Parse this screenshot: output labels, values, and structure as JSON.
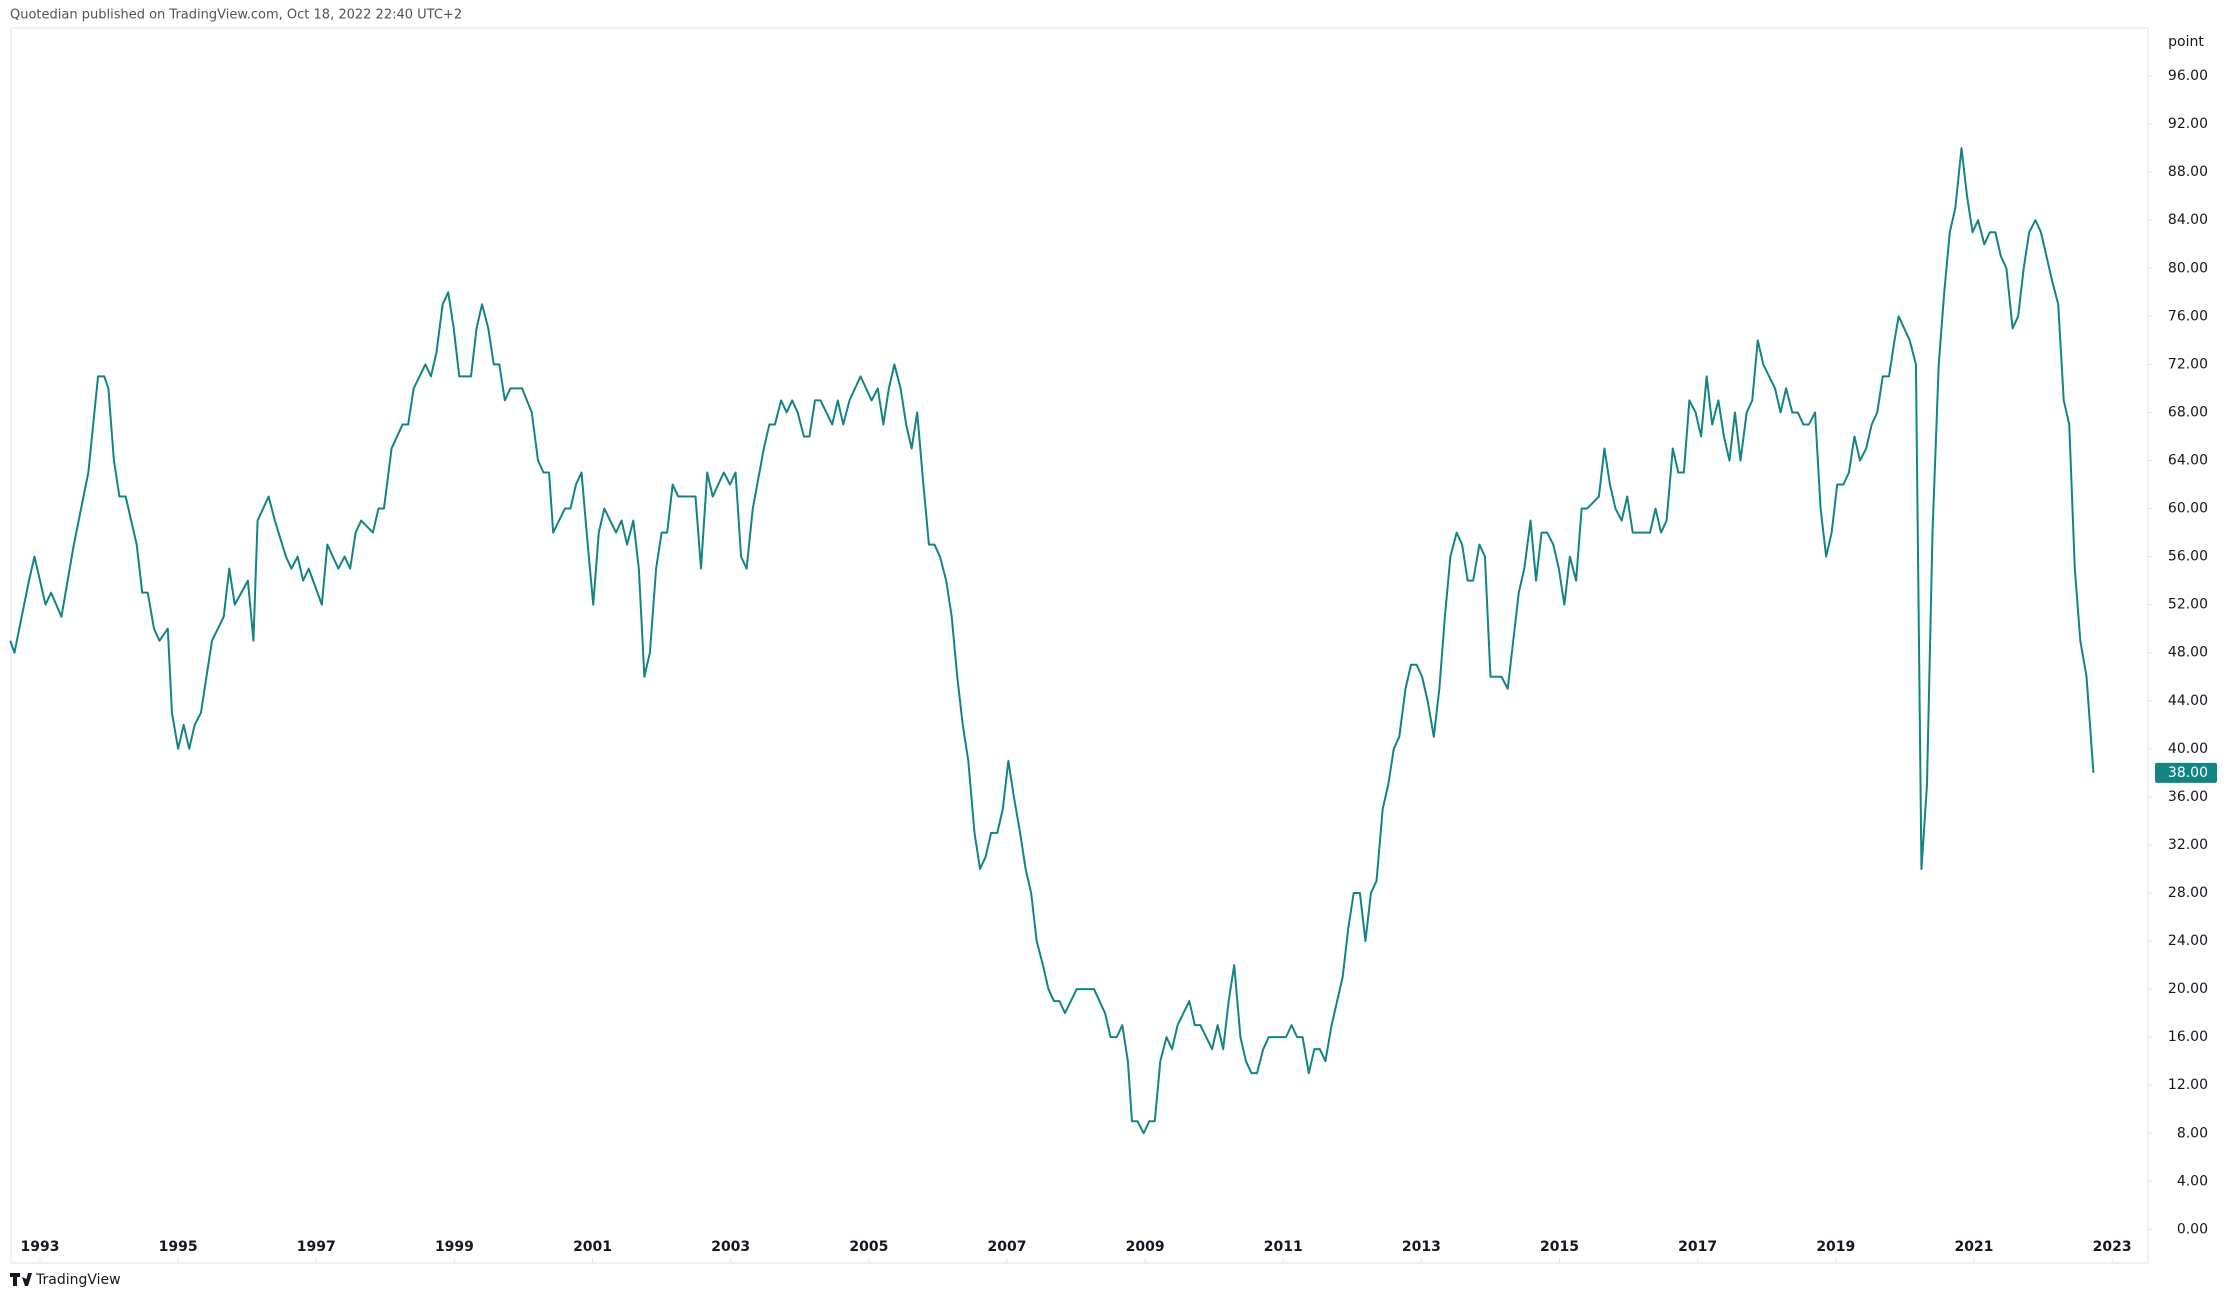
{
  "header": "Quotedian published on TradingView.com, Oct 18, 2022 22:40 UTC+2",
  "footer": "TradingView",
  "chart_data": {
    "type": "line",
    "unit": "point",
    "color": "#138484",
    "grid": false,
    "xlim": [
      1992.58,
      2023.52
    ],
    "xticks": [
      1993,
      1995,
      1997,
      1999,
      2001,
      2003,
      2005,
      2007,
      2009,
      2011,
      2013,
      2015,
      2017,
      2019,
      2021,
      2023
    ],
    "ylim": [
      -2.8,
      100
    ],
    "yticks": [
      {
        "value": 0,
        "label": "0.00"
      },
      {
        "value": 4,
        "label": "4.00"
      },
      {
        "value": 8,
        "label": "8.00"
      },
      {
        "value": 12,
        "label": "12.00"
      },
      {
        "value": 16,
        "label": "16.00"
      },
      {
        "value": 20,
        "label": "20.00"
      },
      {
        "value": 24,
        "label": "24.00"
      },
      {
        "value": 28,
        "label": "28.00"
      },
      {
        "value": 32,
        "label": "32.00"
      },
      {
        "value": 36,
        "label": "36.00"
      },
      {
        "value": 40,
        "label": "40.00"
      },
      {
        "value": 44,
        "label": "44.00"
      },
      {
        "value": 48,
        "label": "48.00"
      },
      {
        "value": 52,
        "label": "52.00"
      },
      {
        "value": 56,
        "label": "56.00"
      },
      {
        "value": 60,
        "label": "60.00"
      },
      {
        "value": 64,
        "label": "64.00"
      },
      {
        "value": 68,
        "label": "68.00"
      },
      {
        "value": 72,
        "label": "72.00"
      },
      {
        "value": 76,
        "label": "76.00"
      },
      {
        "value": 80,
        "label": "80.00"
      },
      {
        "value": 84,
        "label": "84.00"
      },
      {
        "value": 88,
        "label": "88.00"
      },
      {
        "value": 92,
        "label": "92.00"
      },
      {
        "value": 96,
        "label": "96.00"
      }
    ],
    "last_value_label": "38.00",
    "x": [
      1992.57,
      1992.63,
      1992.84,
      1992.92,
      1993.08,
      1993.16,
      1993.31,
      1993.49,
      1993.7,
      1993.84,
      1993.93,
      1993.99,
      1994.07,
      1994.15,
      1994.24,
      1994.4,
      1994.48,
      1994.56,
      1994.65,
      1994.73,
      1994.85,
      1994.91,
      1995.0,
      1995.08,
      1995.16,
      1995.24,
      1995.33,
      1995.49,
      1995.66,
      1995.74,
      1995.82,
      1996.01,
      1996.09,
      1996.15,
      1996.31,
      1996.4,
      1996.56,
      1996.64,
      1996.73,
      1996.81,
      1996.89,
      1997.08,
      1997.16,
      1997.32,
      1997.41,
      1997.49,
      1997.57,
      1997.65,
      1997.82,
      1997.9,
      1997.98,
      1998.09,
      1998.25,
      1998.33,
      1998.41,
      1998.58,
      1998.66,
      1998.74,
      1998.83,
      1998.91,
      1998.99,
      1999.07,
      1999.24,
      1999.32,
      1999.4,
      1999.49,
      1999.57,
      1999.65,
      1999.73,
      1999.81,
      1999.98,
      2000.12,
      2000.21,
      2000.29,
      2000.37,
      2000.43,
      2000.6,
      2000.68,
      2000.76,
      2000.84,
      2000.93,
      2001.01,
      2001.09,
      2001.17,
      2001.34,
      2001.42,
      2001.5,
      2001.59,
      2001.67,
      2001.75,
      2001.83,
      2001.92,
      2002.0,
      2002.08,
      2002.16,
      2002.24,
      2002.49,
      2002.57,
      2002.66,
      2002.74,
      2002.9,
      2002.99,
      2003.07,
      2003.15,
      2003.23,
      2003.32,
      2003.48,
      2003.56,
      2003.64,
      2003.73,
      2003.81,
      2003.89,
      2003.97,
      2004.06,
      2004.14,
      2004.22,
      2004.3,
      2004.47,
      2004.55,
      2004.63,
      2004.72,
      2004.88,
      2005.04,
      2005.13,
      2005.21,
      2005.29,
      2005.37,
      2005.46,
      2005.54,
      2005.62,
      2005.7,
      2005.79,
      2005.87,
      2005.95,
      2006.03,
      2006.12,
      2006.2,
      2006.28,
      2006.36,
      2006.44,
      2006.53,
      2006.61,
      2006.69,
      2006.77,
      2006.86,
      2006.94,
      2007.02,
      2007.1,
      2007.19,
      2007.27,
      2007.35,
      2007.43,
      2007.52,
      2007.6,
      2007.68,
      2007.76,
      2007.84,
      2008.01,
      2008.26,
      2008.34,
      2008.42,
      2008.5,
      2008.59,
      2008.67,
      2008.75,
      2008.81,
      2008.89,
      2008.98,
      2009.06,
      2009.14,
      2009.22,
      2009.31,
      2009.39,
      2009.47,
      2009.64,
      2009.72,
      2009.8,
      2009.97,
      2010.05,
      2010.13,
      2010.21,
      2010.29,
      2010.38,
      2010.46,
      2010.54,
      2010.62,
      2010.71,
      2010.79,
      2011.04,
      2011.12,
      2011.2,
      2011.28,
      2011.37,
      2011.45,
      2011.53,
      2011.61,
      2011.7,
      2011.86,
      2011.94,
      2012.02,
      2012.11,
      2012.19,
      2012.27,
      2012.35,
      2012.44,
      2012.52,
      2012.6,
      2012.68,
      2012.77,
      2012.85,
      2012.93,
      2013.01,
      2013.09,
      2013.18,
      2013.26,
      2013.34,
      2013.42,
      2013.51,
      2013.59,
      2013.67,
      2013.75,
      2013.84,
      2013.92,
      2014.0,
      2014.16,
      2014.25,
      2014.33,
      2014.41,
      2014.49,
      2014.58,
      2014.66,
      2014.74,
      2014.82,
      2014.91,
      2014.99,
      2015.07,
      2015.15,
      2015.24,
      2015.32,
      2015.4,
      2015.57,
      2015.65,
      2015.73,
      2015.81,
      2015.9,
      2015.98,
      2016.06,
      2016.31,
      2016.39,
      2016.47,
      2016.55,
      2016.64,
      2016.72,
      2016.8,
      2016.88,
      2016.97,
      2017.05,
      2017.13,
      2017.21,
      2017.3,
      2017.38,
      2017.46,
      2017.54,
      2017.62,
      2017.71,
      2017.79,
      2017.87,
      2017.95,
      2018.12,
      2018.2,
      2018.28,
      2018.37,
      2018.45,
      2018.53,
      2018.61,
      2018.7,
      2018.78,
      2018.86,
      2018.94,
      2019.02,
      2019.11,
      2019.19,
      2019.27,
      2019.35,
      2019.44,
      2019.52,
      2019.6,
      2019.68,
      2019.77,
      2019.85,
      2019.91,
      2019.99,
      2020.07,
      2020.16,
      2020.24,
      2020.32,
      2020.4,
      2020.49,
      2020.57,
      2020.65,
      2020.73,
      2020.82,
      2020.9,
      2020.98,
      2021.06,
      2021.15,
      2021.23,
      2021.31,
      2021.39,
      2021.47,
      2021.56,
      2021.64,
      2021.72,
      2021.8,
      2021.89,
      2021.97,
      2022.05,
      2022.13,
      2022.22,
      2022.3,
      2022.38,
      2022.46,
      2022.54,
      2022.63,
      2022.73
    ],
    "values": [
      49,
      48,
      54,
      56,
      52,
      53,
      51,
      57,
      63,
      71,
      71,
      70,
      64,
      61,
      61,
      57,
      53,
      53,
      50,
      49,
      50,
      43,
      40,
      42,
      40,
      42,
      43,
      49,
      51,
      55,
      52,
      54,
      49,
      59,
      61,
      59,
      56,
      55,
      56,
      54,
      55,
      52,
      57,
      55,
      56,
      55,
      58,
      59,
      58,
      60,
      60,
      65,
      67,
      67,
      70,
      72,
      71,
      73,
      77,
      78,
      75,
      71,
      71,
      75,
      77,
      75,
      72,
      72,
      69,
      70,
      70,
      68,
      64,
      63,
      63,
      58,
      60,
      60,
      62,
      63,
      57,
      52,
      58,
      60,
      58,
      59,
      57,
      59,
      55,
      46,
      48,
      55,
      58,
      58,
      62,
      61,
      61,
      55,
      63,
      61,
      63,
      62,
      63,
      56,
      55,
      60,
      65,
      67,
      67,
      69,
      68,
      69,
      68,
      66,
      66,
      69,
      69,
      67,
      69,
      67,
      69,
      71,
      69,
      70,
      67,
      70,
      72,
      70,
      67,
      65,
      68,
      62,
      57,
      57,
      56,
      54,
      51,
      46,
      42,
      39,
      33,
      30,
      31,
      33,
      33,
      35,
      39,
      36,
      33,
      30,
      28,
      24,
      22,
      20,
      19,
      19,
      18,
      20,
      20,
      19,
      18,
      16,
      16,
      17,
      14,
      9,
      9,
      8,
      9,
      9,
      14,
      16,
      15,
      17,
      19,
      17,
      17,
      15,
      17,
      15,
      19,
      22,
      16,
      14,
      13,
      13,
      15,
      16,
      16,
      17,
      16,
      16,
      13,
      15,
      15,
      14,
      17,
      21,
      25,
      28,
      28,
      24,
      28,
      29,
      35,
      37,
      40,
      41,
      45,
      47,
      47,
      46,
      44,
      41,
      45,
      51,
      56,
      58,
      57,
      54,
      54,
      57,
      56,
      46,
      46,
      45,
      49,
      53,
      55,
      59,
      54,
      58,
      58,
      57,
      55,
      52,
      56,
      54,
      60,
      60,
      61,
      65,
      62,
      60,
      59,
      61,
      58,
      58,
      60,
      58,
      59,
      65,
      63,
      63,
      69,
      68,
      66,
      71,
      67,
      69,
      66,
      64,
      68,
      64,
      68,
      69,
      74,
      72,
      70,
      68,
      70,
      68,
      68,
      67,
      67,
      68,
      60,
      56,
      58,
      62,
      62,
      63,
      66,
      64,
      65,
      67,
      68,
      71,
      71,
      74,
      76,
      75,
      74,
      72,
      30,
      37,
      58,
      72,
      78,
      83,
      85,
      90,
      86,
      83,
      84,
      82,
      83,
      83,
      81,
      80,
      75,
      76,
      80,
      83,
      84,
      83,
      81,
      79,
      77,
      69,
      67,
      55,
      49,
      46,
      38
    ]
  }
}
